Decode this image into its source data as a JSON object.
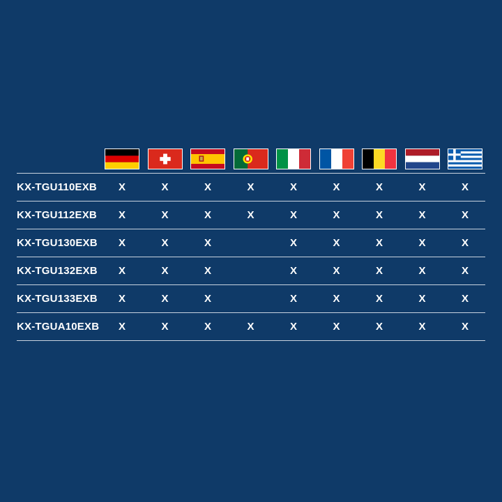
{
  "flags": [
    {
      "country": "Germany",
      "icon": "germany-flag-icon"
    },
    {
      "country": "Switzerland",
      "icon": "switzerland-flag-icon"
    },
    {
      "country": "Spain",
      "icon": "spain-flag-icon"
    },
    {
      "country": "Portugal",
      "icon": "portugal-flag-icon"
    },
    {
      "country": "Italy",
      "icon": "italy-flag-icon"
    },
    {
      "country": "France",
      "icon": "france-flag-icon"
    },
    {
      "country": "Belgium",
      "icon": "belgium-flag-icon"
    },
    {
      "country": "Netherlands",
      "icon": "netherlands-flag-icon"
    },
    {
      "country": "Greece",
      "icon": "greece-flag-icon"
    }
  ],
  "rows": [
    {
      "model": "KX-TGU110EXB",
      "cells": [
        "X",
        "X",
        "X",
        "X",
        "X",
        "X",
        "X",
        "X",
        "X"
      ]
    },
    {
      "model": "KX-TGU112EXB",
      "cells": [
        "X",
        "X",
        "X",
        "X",
        "X",
        "X",
        "X",
        "X",
        "X"
      ]
    },
    {
      "model": "KX-TGU130EXB",
      "cells": [
        "X",
        "X",
        "X",
        "",
        "X",
        "X",
        "X",
        "X",
        "X"
      ]
    },
    {
      "model": "KX-TGU132EXB",
      "cells": [
        "X",
        "X",
        "X",
        "",
        "X",
        "X",
        "X",
        "X",
        "X"
      ]
    },
    {
      "model": "KX-TGU133EXB",
      "cells": [
        "X",
        "X",
        "X",
        "",
        "X",
        "X",
        "X",
        "X",
        "X"
      ]
    },
    {
      "model": "KX-TGUA10EXB",
      "cells": [
        "X",
        "X",
        "X",
        "X",
        "X",
        "X",
        "X",
        "X",
        "X"
      ]
    }
  ]
}
